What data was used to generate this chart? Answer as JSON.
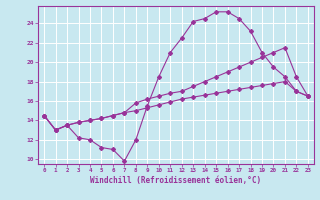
{
  "xlabel": "Windchill (Refroidissement éolien,°C)",
  "background_color": "#c8e8f0",
  "grid_color": "#ffffff",
  "line_color": "#993399",
  "xlim": [
    -0.5,
    23.5
  ],
  "ylim": [
    9.5,
    25.8
  ],
  "xticks": [
    0,
    1,
    2,
    3,
    4,
    5,
    6,
    7,
    8,
    9,
    10,
    11,
    12,
    13,
    14,
    15,
    16,
    17,
    18,
    19,
    20,
    21,
    22,
    23
  ],
  "yticks": [
    10,
    12,
    14,
    16,
    18,
    20,
    22,
    24
  ],
  "line1_x": [
    0,
    1,
    2,
    3,
    4,
    5,
    6,
    7,
    8,
    9,
    10,
    11,
    12,
    13,
    14,
    15,
    16,
    17,
    18,
    19,
    20,
    21,
    22,
    23
  ],
  "line1_y": [
    14.5,
    13.0,
    13.5,
    12.2,
    12.0,
    11.2,
    11.0,
    9.8,
    12.0,
    15.5,
    18.5,
    21.0,
    22.5,
    24.2,
    24.5,
    25.2,
    25.2,
    24.5,
    23.2,
    21.0,
    19.5,
    18.5,
    17.0,
    16.5
  ],
  "line2_x": [
    0,
    1,
    2,
    3,
    4,
    5,
    6,
    7,
    8,
    9,
    10,
    11,
    12,
    13,
    14,
    15,
    16,
    17,
    18,
    19,
    20,
    21,
    22,
    23
  ],
  "line2_y": [
    14.5,
    13.0,
    13.5,
    13.8,
    14.0,
    14.2,
    14.5,
    14.8,
    15.8,
    16.2,
    16.5,
    16.8,
    17.0,
    17.5,
    18.0,
    18.5,
    19.0,
    19.5,
    20.0,
    20.5,
    21.0,
    21.5,
    18.5,
    16.5
  ],
  "line3_x": [
    0,
    1,
    2,
    3,
    4,
    5,
    6,
    7,
    8,
    9,
    10,
    11,
    12,
    13,
    14,
    15,
    16,
    17,
    18,
    19,
    20,
    21,
    22,
    23
  ],
  "line3_y": [
    14.5,
    13.0,
    13.5,
    13.8,
    14.0,
    14.2,
    14.5,
    14.8,
    15.0,
    15.3,
    15.6,
    15.9,
    16.2,
    16.4,
    16.6,
    16.8,
    17.0,
    17.2,
    17.4,
    17.6,
    17.8,
    18.0,
    17.0,
    16.5
  ]
}
